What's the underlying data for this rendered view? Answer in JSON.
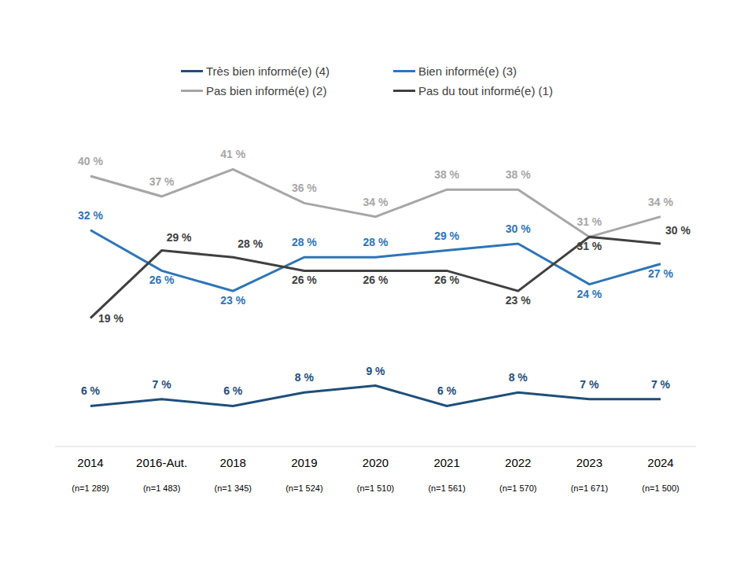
{
  "chart_data": {
    "type": "line",
    "categories": [
      "2014\n(n=1 289)",
      "2016-Aut.\n(n=1 483)",
      "2018\n(n=1 345)",
      "2019\n(n=1 524)",
      "2020\n(n=1 510)",
      "2021\n(n=1 561)",
      "2022\n(n=1 570)",
      "2023\n(n=1 671)",
      "2024\n(n=1 500)"
    ],
    "series": [
      {
        "name": "Très bien informé(e) (4)",
        "color": "#1f4e79",
        "values": [
          6,
          7,
          6,
          8,
          9,
          6,
          8,
          7,
          7
        ],
        "value_labels": [
          "6 %",
          "7 %",
          "6 %",
          "8 %",
          "9 %",
          "6 %",
          "8 %",
          "7 %",
          "7 %"
        ]
      },
      {
        "name": "Bien informé(e) (3)",
        "color": "#2e75b6",
        "values": [
          32,
          26,
          23,
          28,
          28,
          29,
          30,
          24,
          27
        ],
        "value_labels": [
          "32 %",
          "26 %",
          "23 %",
          "28 %",
          "28 %",
          "29 %",
          "30 %",
          "24 %",
          "27 %"
        ]
      },
      {
        "name": "Pas bien informé(e) (2)",
        "color": "#a6a6a6",
        "values": [
          40,
          37,
          41,
          36,
          34,
          38,
          38,
          31,
          34
        ],
        "value_labels": [
          "40 %",
          "37 %",
          "41 %",
          "36 %",
          "34 %",
          "38 %",
          "38 %",
          "31 %",
          "34 %"
        ]
      },
      {
        "name": "Pas du tout informé(e) (1)",
        "color": "#404040",
        "values": [
          19,
          29,
          28,
          26,
          26,
          26,
          23,
          31,
          30
        ],
        "value_labels": [
          "19 %",
          "29 %",
          "28 %",
          "26 %",
          "26 %",
          "26 %",
          "23 %",
          "31 %",
          "30 %"
        ]
      }
    ],
    "ylim": [
      0,
      45
    ],
    "tick_labels": "x",
    "data_labels": true,
    "legend": "top",
    "grid": false
  }
}
